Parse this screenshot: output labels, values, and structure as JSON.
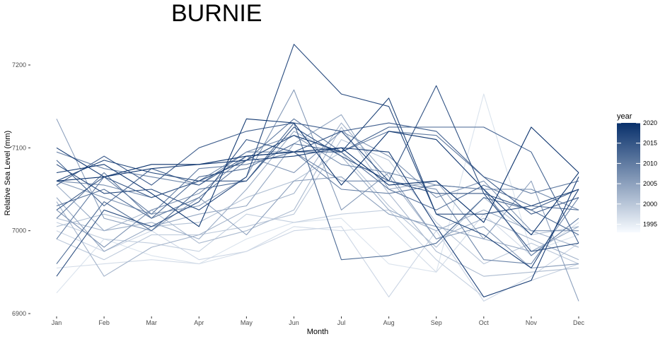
{
  "chart_data": {
    "type": "line",
    "title": "BURNIE",
    "xlabel": "Month",
    "ylabel": "Relative Sea Level (mm)",
    "categories": [
      "Jan",
      "Feb",
      "Mar",
      "Apr",
      "May",
      "Jun",
      "Jul",
      "Aug",
      "Sep",
      "Oct",
      "Nov",
      "Dec"
    ],
    "ylim": [
      6900,
      7240
    ],
    "yticks": [
      6900,
      7000,
      7100,
      7200
    ],
    "ytick_labels": [
      "6900",
      "7000",
      "7100",
      "7200"
    ],
    "legend": {
      "title": "year",
      "position": "right",
      "range": [
        1993,
        2020
      ],
      "ticks": [
        1995,
        2000,
        2005,
        2010,
        2015,
        2020
      ],
      "tick_labels": [
        "1995",
        "2000",
        "2005",
        "2010",
        "2015",
        "2020"
      ],
      "low_color": "#f7fbff",
      "high_color": "#08306b"
    },
    "series": [
      {
        "name": "1993",
        "values": [
          6925,
          6990,
          6970,
          6960,
          6990,
          7010,
          7015,
          6960,
          6950,
          7165,
          6975,
          6995
        ]
      },
      {
        "name": "1994",
        "values": [
          6955,
          6960,
          6965,
          6960,
          6975,
          7005,
          7000,
          7005,
          6950,
          7020,
          6970,
          7010
        ]
      },
      {
        "name": "1995",
        "values": [
          7000,
          6975,
          7000,
          6965,
          6975,
          7000,
          7005,
          6920,
          7000,
          6915,
          6945,
          6985
        ]
      },
      {
        "name": "1996",
        "values": [
          7010,
          6990,
          6985,
          6975,
          7020,
          7010,
          7020,
          7025,
          6965,
          6920,
          6940,
          6960
        ]
      },
      {
        "name": "1997",
        "values": [
          6990,
          6965,
          6995,
          6995,
          7005,
          7020,
          7110,
          7085,
          7010,
          6960,
          6985,
          6960
        ]
      },
      {
        "name": "1998",
        "values": [
          7005,
          7020,
          7005,
          7010,
          7040,
          7060,
          7095,
          7030,
          6980,
          7040,
          6995,
          7005
        ]
      },
      {
        "name": "1999",
        "values": [
          7015,
          7000,
          7025,
          6985,
          7000,
          7025,
          7125,
          7045,
          6975,
          6945,
          6950,
          6955
        ]
      },
      {
        "name": "2000",
        "values": [
          7035,
          6945,
          6980,
          6995,
          7025,
          7045,
          7130,
          7065,
          6990,
          7015,
          6990,
          6965
        ]
      },
      {
        "name": "2001",
        "values": [
          7055,
          7000,
          7010,
          6990,
          7050,
          7120,
          7090,
          7025,
          7000,
          7025,
          7000,
          6980
        ]
      },
      {
        "name": "2002",
        "values": [
          7040,
          6975,
          7005,
          7020,
          7030,
          7105,
          7140,
          7050,
          7060,
          6990,
          6975,
          7005
        ]
      },
      {
        "name": "2003",
        "values": [
          7135,
          7015,
          7000,
          7040,
          6995,
          7060,
          7065,
          7020,
          7005,
          6990,
          7060,
          6915
        ]
      },
      {
        "name": "2004",
        "values": [
          7060,
          7040,
          7020,
          7030,
          7065,
          7170,
          7025,
          7070,
          6990,
          7005,
          6955,
          6960
        ]
      },
      {
        "name": "2005",
        "values": [
          7025,
          6980,
          7025,
          7045,
          7090,
          7070,
          7120,
          7090,
          7040,
          7060,
          7000,
          7000
        ]
      },
      {
        "name": "2006",
        "values": [
          7060,
          7055,
          7040,
          7060,
          7095,
          7115,
          7080,
          7070,
          7055,
          7050,
          7050,
          7025
        ]
      },
      {
        "name": "2007",
        "values": [
          7095,
          7075,
          7065,
          7055,
          7095,
          7095,
          7060,
          7060,
          7050,
          6965,
          6960,
          7040
        ]
      },
      {
        "name": "2008",
        "values": [
          6990,
          7065,
          7020,
          7075,
          7080,
          7095,
          7050,
          7045,
          7055,
          7050,
          6970,
          7015
        ]
      },
      {
        "name": "2009",
        "values": [
          7015,
          7070,
          7015,
          7040,
          7085,
          7135,
          7095,
          7120,
          7115,
          7065,
          7045,
          7060
        ]
      },
      {
        "name": "2010",
        "values": [
          7030,
          7050,
          7015,
          7065,
          7075,
          7105,
          7095,
          7050,
          7025,
          7055,
          7030,
          7025
        ]
      },
      {
        "name": "2011",
        "values": [
          6960,
          7035,
          7000,
          7050,
          7060,
          7130,
          6965,
          6970,
          6985,
          7040,
          7025,
          6995
        ]
      },
      {
        "name": "2012",
        "values": [
          7085,
          7030,
          7075,
          7055,
          7090,
          7095,
          7095,
          7125,
          7125,
          7125,
          7095,
          6985
        ]
      },
      {
        "name": "2013",
        "values": [
          7055,
          7090,
          7055,
          7100,
          7120,
          7130,
          7120,
          7130,
          7120,
          7065,
          7020,
          7040
        ]
      },
      {
        "name": "2014",
        "values": [
          7025,
          7065,
          7040,
          7060,
          7060,
          7125,
          7090,
          7060,
          7045,
          7045,
          7025,
          7050
        ]
      },
      {
        "name": "2015",
        "values": [
          6945,
          7025,
          7005,
          7035,
          7110,
          7095,
          7120,
          7060,
          7175,
          7045,
          6975,
          6985
        ]
      },
      {
        "name": "2016",
        "values": [
          7080,
          7045,
          7050,
          7025,
          7065,
          7225,
          7165,
          7150,
          7020,
          7020,
          7030,
          7050
        ]
      },
      {
        "name": "2017",
        "values": [
          7060,
          7085,
          7070,
          7060,
          7085,
          7115,
          7095,
          7160,
          7020,
          6995,
          6955,
          7050
        ]
      },
      {
        "name": "2018",
        "values": [
          7100,
          7065,
          7075,
          7080,
          7085,
          7090,
          7100,
          7095,
          7005,
          6920,
          6940,
          7065
        ]
      },
      {
        "name": "2019",
        "values": [
          7070,
          7080,
          7045,
          7005,
          7135,
          7130,
          7055,
          7120,
          7110,
          7050,
          6995,
          7070
        ]
      },
      {
        "name": "2020",
        "values": [
          7060,
          7065,
          7080,
          7080,
          7090,
          7095,
          7100,
          7055,
          7060,
          7010,
          7125,
          7070
        ]
      }
    ]
  }
}
